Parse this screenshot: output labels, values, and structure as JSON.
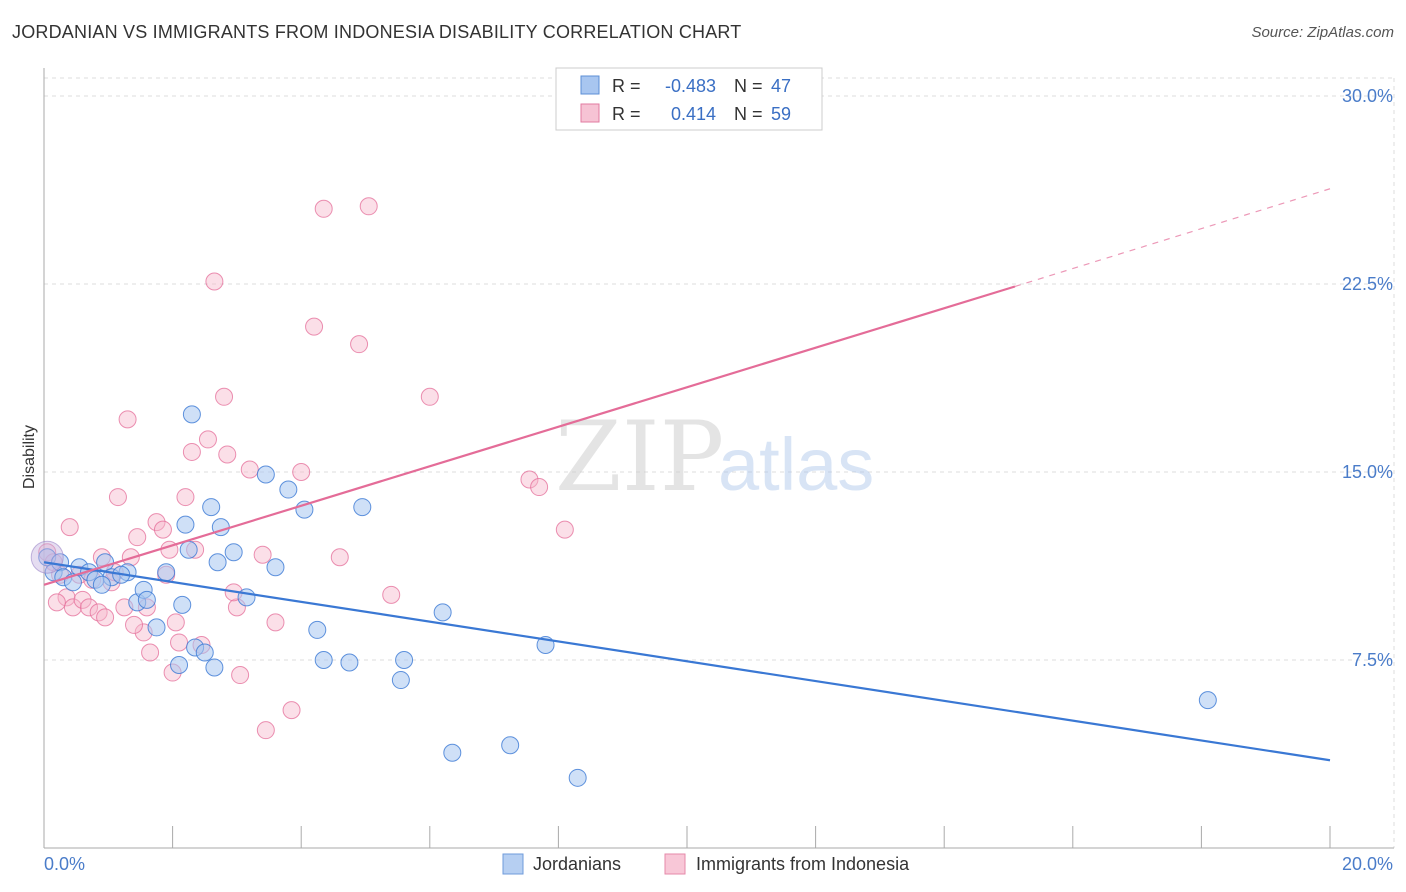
{
  "title": "JORDANIAN VS IMMIGRANTS FROM INDONESIA DISABILITY CORRELATION CHART",
  "source": "Source: ZipAtlas.com",
  "watermark": {
    "zip": "ZIP",
    "atlas": "atlas"
  },
  "colors": {
    "blue": "#3a78d4",
    "blue_fill": "#a8c6f0",
    "pink": "#e46c98",
    "pink_fill": "#f6b7cc",
    "grid": "#dddddd",
    "axis_text": "#4a7cc9"
  },
  "legend": {
    "items": [
      {
        "r_label": "R =",
        "r_value": "-0.483",
        "n_label": "N =",
        "n_value": "47"
      },
      {
        "r_label": "R =",
        "r_value": "0.414",
        "n_label": "N =",
        "n_value": "59"
      }
    ]
  },
  "chart_data": {
    "type": "scatter",
    "title": "JORDANIAN VS IMMIGRANTS FROM INDONESIA DISABILITY CORRELATION CHART",
    "xlabel": "",
    "ylabel": "Disability",
    "xlim": [
      0,
      20
    ],
    "ylim": [
      0,
      31.5
    ],
    "x_tick_labels": [
      "0.0%",
      "20.0%"
    ],
    "y_ticks": [
      7.5,
      15.0,
      22.5,
      30.0
    ],
    "y_tick_labels": [
      "7.5%",
      "15.0%",
      "22.5%",
      "30.0%"
    ],
    "grid": true,
    "legend_position": "top-center",
    "series": [
      {
        "name": "Jordanians",
        "color": "#3a78d4",
        "r": -0.483,
        "n": 47,
        "trend": {
          "x0": 0,
          "y0": 11.4,
          "x1": 20,
          "y1": 3.5
        },
        "points": [
          [
            0.05,
            11.6
          ],
          [
            0.15,
            11.0
          ],
          [
            0.25,
            11.4
          ],
          [
            0.3,
            10.8
          ],
          [
            0.45,
            10.6
          ],
          [
            0.55,
            11.2
          ],
          [
            0.7,
            11.0
          ],
          [
            0.8,
            10.7
          ],
          [
            0.95,
            11.4
          ],
          [
            1.05,
            10.8
          ],
          [
            1.3,
            11.0
          ],
          [
            1.45,
            9.8
          ],
          [
            1.55,
            10.3
          ],
          [
            1.75,
            8.8
          ],
          [
            2.1,
            7.3
          ],
          [
            2.15,
            9.7
          ],
          [
            2.2,
            12.9
          ],
          [
            2.25,
            11.9
          ],
          [
            2.3,
            17.3
          ],
          [
            2.35,
            8.0
          ],
          [
            2.5,
            7.8
          ],
          [
            2.6,
            13.6
          ],
          [
            2.65,
            7.2
          ],
          [
            2.7,
            11.4
          ],
          [
            2.75,
            12.8
          ],
          [
            2.95,
            11.8
          ],
          [
            3.15,
            10.0
          ],
          [
            3.45,
            14.9
          ],
          [
            3.6,
            11.2
          ],
          [
            3.8,
            14.3
          ],
          [
            4.05,
            13.5
          ],
          [
            4.25,
            8.7
          ],
          [
            4.35,
            7.5
          ],
          [
            4.75,
            7.4
          ],
          [
            4.95,
            13.6
          ],
          [
            5.55,
            6.7
          ],
          [
            5.6,
            7.5
          ],
          [
            6.2,
            9.4
          ],
          [
            6.35,
            3.8
          ],
          [
            7.25,
            4.1
          ],
          [
            7.8,
            8.1
          ],
          [
            8.3,
            2.8
          ],
          [
            18.1,
            5.9
          ],
          [
            1.9,
            11.0
          ],
          [
            1.2,
            10.9
          ],
          [
            0.9,
            10.5
          ],
          [
            1.6,
            9.9
          ]
        ]
      },
      {
        "name": "Immigrants from Indonesia",
        "color": "#e46c98",
        "r": 0.414,
        "n": 59,
        "trend": {
          "x0": 0,
          "y0": 10.5,
          "x1": 15.1,
          "y1": 22.4
        },
        "trend_dashed_to": {
          "x": 20,
          "y": 26.3
        },
        "points": [
          [
            0.05,
            11.8
          ],
          [
            0.15,
            11.4
          ],
          [
            0.25,
            10.9
          ],
          [
            0.35,
            10.0
          ],
          [
            0.45,
            9.6
          ],
          [
            0.55,
            10.9
          ],
          [
            0.6,
            9.9
          ],
          [
            0.7,
            9.6
          ],
          [
            0.75,
            10.7
          ],
          [
            0.85,
            9.4
          ],
          [
            0.95,
            9.2
          ],
          [
            1.05,
            10.6
          ],
          [
            1.1,
            11.0
          ],
          [
            1.15,
            14.0
          ],
          [
            1.25,
            9.6
          ],
          [
            1.3,
            17.1
          ],
          [
            1.35,
            11.6
          ],
          [
            1.45,
            12.4
          ],
          [
            1.55,
            8.6
          ],
          [
            1.6,
            9.6
          ],
          [
            1.65,
            7.8
          ],
          [
            1.75,
            13.0
          ],
          [
            1.85,
            12.7
          ],
          [
            1.95,
            11.9
          ],
          [
            2.0,
            7.0
          ],
          [
            2.05,
            9.0
          ],
          [
            2.1,
            8.2
          ],
          [
            2.2,
            14.0
          ],
          [
            2.3,
            15.8
          ],
          [
            2.35,
            11.9
          ],
          [
            2.45,
            8.1
          ],
          [
            2.55,
            16.3
          ],
          [
            2.65,
            22.6
          ],
          [
            2.8,
            18.0
          ],
          [
            2.85,
            15.7
          ],
          [
            3.0,
            9.6
          ],
          [
            3.05,
            6.9
          ],
          [
            3.2,
            15.1
          ],
          [
            3.4,
            11.7
          ],
          [
            3.45,
            4.7
          ],
          [
            3.6,
            9.0
          ],
          [
            3.85,
            5.5
          ],
          [
            4.0,
            15.0
          ],
          [
            4.2,
            20.8
          ],
          [
            4.35,
            25.5
          ],
          [
            4.6,
            11.6
          ],
          [
            4.9,
            20.1
          ],
          [
            5.05,
            25.6
          ],
          [
            5.4,
            10.1
          ],
          [
            6.0,
            18.0
          ],
          [
            7.55,
            14.7
          ],
          [
            7.7,
            14.4
          ],
          [
            8.1,
            12.7
          ],
          [
            0.4,
            12.8
          ],
          [
            0.9,
            11.6
          ],
          [
            1.9,
            10.9
          ],
          [
            2.95,
            10.2
          ],
          [
            1.4,
            8.9
          ],
          [
            0.2,
            9.8
          ]
        ]
      }
    ]
  },
  "bottom_legend": {
    "items": [
      {
        "label": "Jordanians"
      },
      {
        "label": "Immigrants from Indonesia"
      }
    ]
  }
}
